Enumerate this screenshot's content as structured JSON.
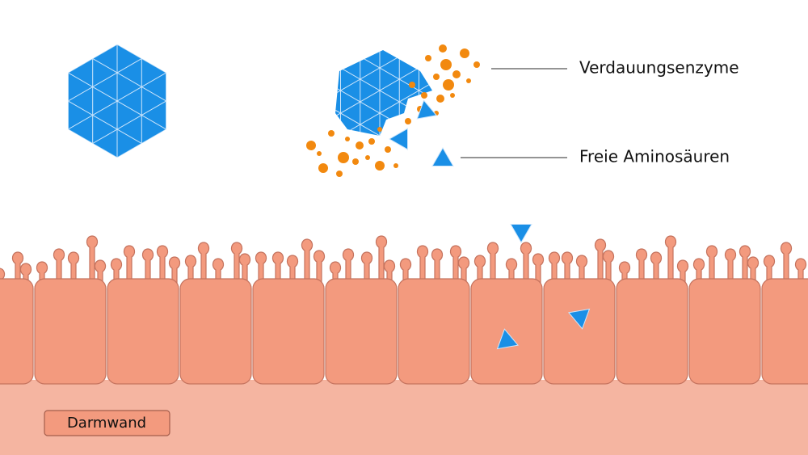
{
  "labels": {
    "enzymes": "Verdauungsenzyme",
    "amino_acids": "Freie Aminosäuren",
    "wall": "Darmwand"
  }
}
